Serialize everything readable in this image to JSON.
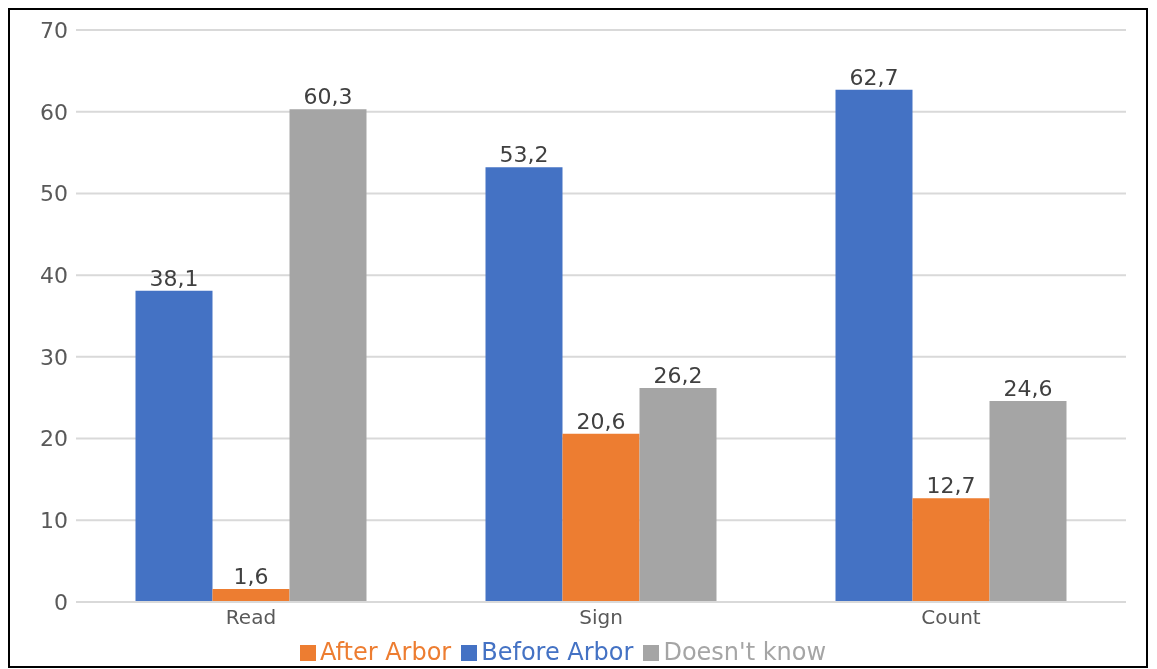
{
  "chart_data": {
    "type": "bar",
    "categories": [
      "Read",
      "Sign",
      "Count"
    ],
    "series": [
      {
        "name": "Before Arbor",
        "color": "#4472c4",
        "values": [
          38.1,
          53.2,
          62.7
        ],
        "value_labels": [
          "38,1",
          "53,2",
          "62,7"
        ]
      },
      {
        "name": "After Arbor",
        "color": "#ed7d31",
        "values": [
          1.6,
          20.6,
          12.7
        ],
        "value_labels": [
          "1,6",
          "20,6",
          "12,7"
        ]
      },
      {
        "name": "Doesn't know",
        "color": "#a5a5a5",
        "values": [
          60.3,
          26.2,
          24.6
        ],
        "value_labels": [
          "60,3",
          "26,2",
          "24,6"
        ]
      }
    ],
    "ylim": [
      0,
      70
    ],
    "yticks": [
      0,
      10,
      20,
      30,
      40,
      50,
      60,
      70
    ],
    "grid": "y",
    "legend": "bottom"
  }
}
